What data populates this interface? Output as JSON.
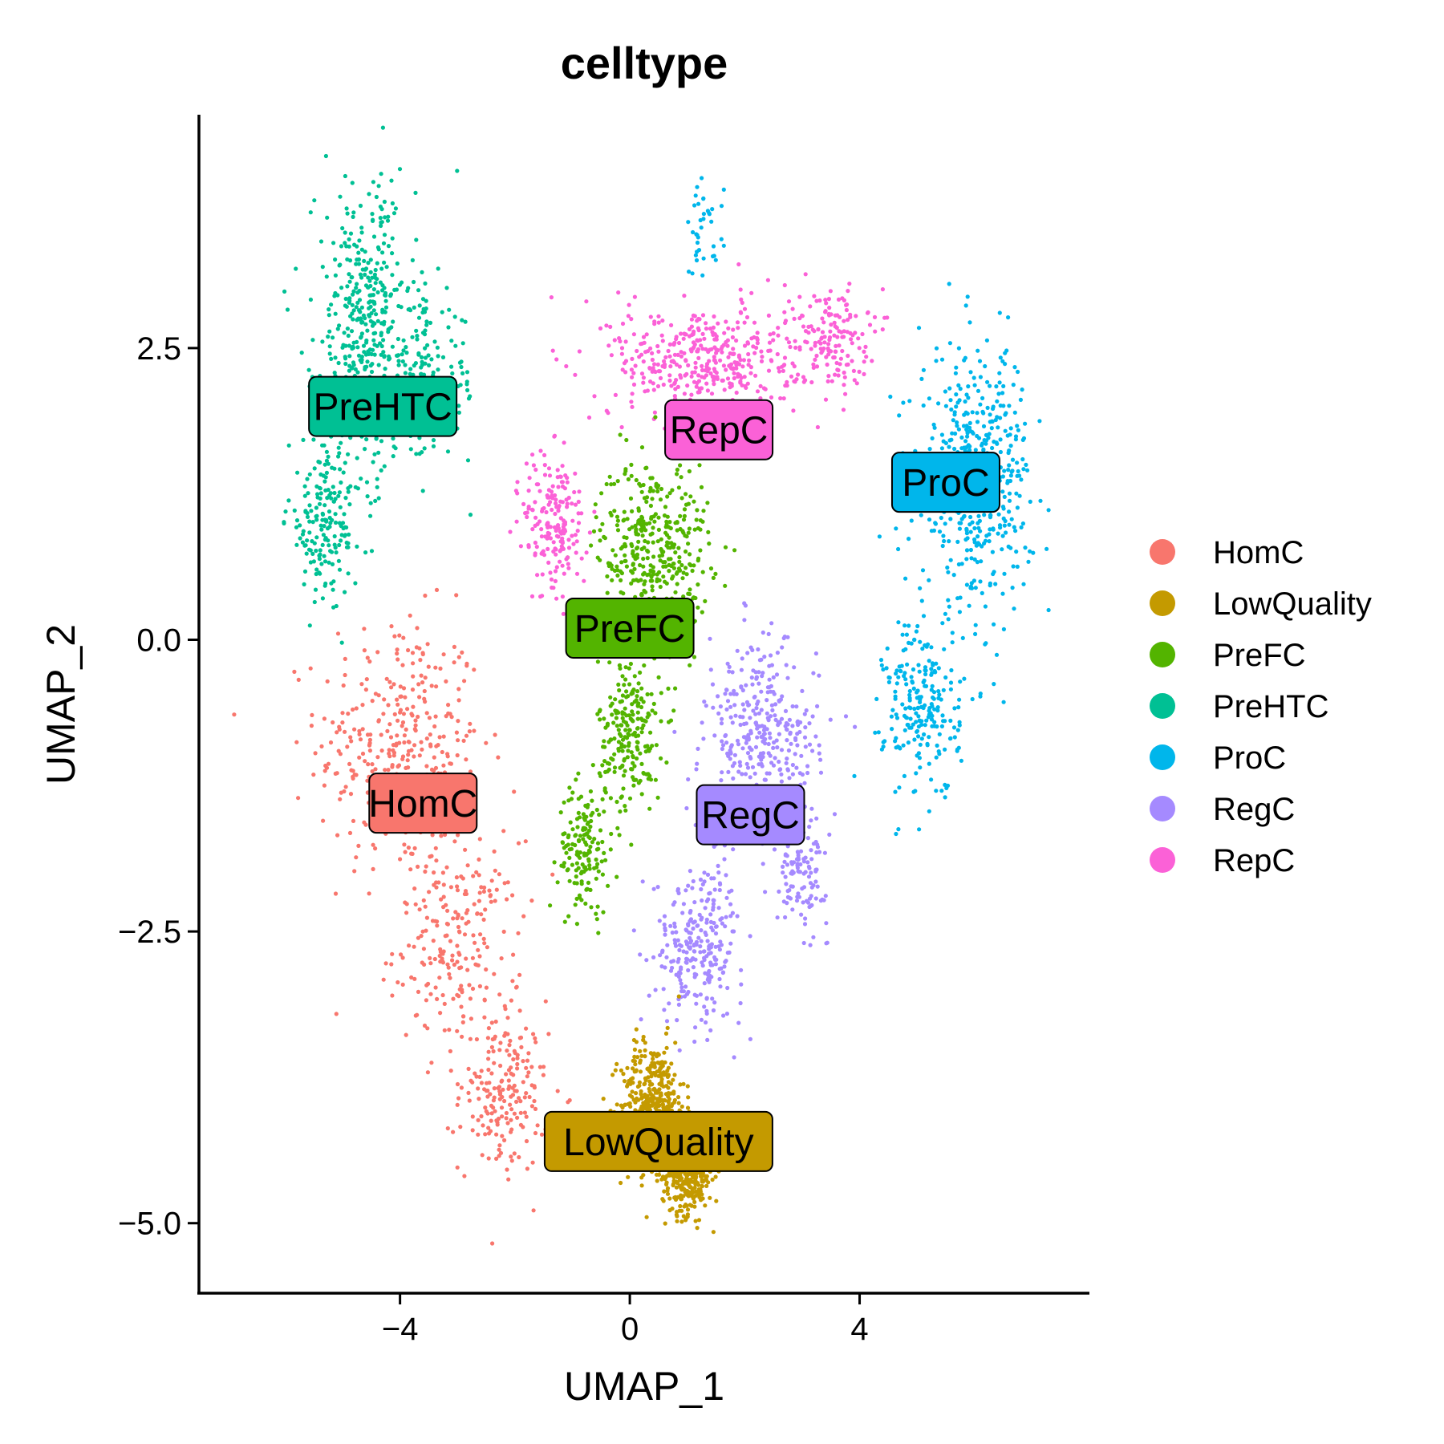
{
  "chart_data": {
    "type": "scatter",
    "title": "celltype",
    "xlabel": "UMAP_1",
    "ylabel": "UMAP_2",
    "xlim": [
      -7.5,
      8
    ],
    "ylim": [
      -5.6,
      4.5
    ],
    "x_ticks": [
      -4,
      0,
      4
    ],
    "x_tick_labels": [
      "−4",
      "0",
      "4"
    ],
    "y_ticks": [
      -5.0,
      -2.5,
      0.0,
      2.5
    ],
    "y_tick_labels": [
      "−5.0",
      "−2.5",
      "0.0",
      "2.5"
    ],
    "grid": false,
    "legend_position": "right",
    "series": [
      {
        "name": "HomC",
        "color": "#F8766D",
        "label": "HomC",
        "label_x": -3.6,
        "label_y": -1.4,
        "regions": [
          {
            "cx": -4.0,
            "cy": -0.9,
            "sx": 1.3,
            "sy": 1.0,
            "w": 0.45
          },
          {
            "cx": -3.0,
            "cy": -2.6,
            "sx": 1.0,
            "sy": 0.8,
            "w": 0.3
          },
          {
            "cx": -2.2,
            "cy": -3.9,
            "sx": 0.7,
            "sy": 0.6,
            "w": 0.25
          }
        ]
      },
      {
        "name": "LowQuality",
        "color": "#C49A00",
        "label": "LowQuality",
        "label_x": 0.5,
        "label_y": -4.3,
        "regions": [
          {
            "cx": 0.4,
            "cy": -4.0,
            "sx": 0.5,
            "sy": 0.5,
            "w": 0.6
          },
          {
            "cx": 1.0,
            "cy": -4.6,
            "sx": 0.4,
            "sy": 0.3,
            "w": 0.4
          }
        ]
      },
      {
        "name": "PreFC",
        "color": "#53B400",
        "label": "PreFC",
        "label_x": 0.0,
        "label_y": 0.1,
        "regions": [
          {
            "cx": 0.4,
            "cy": 0.8,
            "sx": 0.9,
            "sy": 0.7,
            "w": 0.5
          },
          {
            "cx": 0.0,
            "cy": -0.8,
            "sx": 0.5,
            "sy": 0.6,
            "w": 0.3
          },
          {
            "cx": -0.8,
            "cy": -1.8,
            "sx": 0.4,
            "sy": 0.5,
            "w": 0.2
          }
        ]
      },
      {
        "name": "PreHTC",
        "color": "#00C094",
        "label": "PreHTC",
        "label_x": -4.3,
        "label_y": 2.0,
        "regions": [
          {
            "cx": -4.6,
            "cy": 2.7,
            "sx": 0.8,
            "sy": 1.1,
            "w": 0.55
          },
          {
            "cx": -5.3,
            "cy": 1.0,
            "sx": 0.6,
            "sy": 0.6,
            "w": 0.25
          },
          {
            "cx": -3.5,
            "cy": 2.2,
            "sx": 0.8,
            "sy": 0.6,
            "w": 0.2
          }
        ]
      },
      {
        "name": "ProC",
        "color": "#00B6EB",
        "label": "ProC",
        "label_x": 5.5,
        "label_y": 1.35,
        "regions": [
          {
            "cx": 6.0,
            "cy": 1.4,
            "sx": 0.9,
            "sy": 1.0,
            "w": 0.65
          },
          {
            "cx": 5.1,
            "cy": -0.6,
            "sx": 0.6,
            "sy": 0.7,
            "w": 0.3
          },
          {
            "cx": 1.3,
            "cy": 3.5,
            "sx": 0.3,
            "sy": 0.4,
            "w": 0.05
          }
        ]
      },
      {
        "name": "RegC",
        "color": "#A58AFF",
        "label": "RegC",
        "label_x": 2.1,
        "label_y": -1.5,
        "regions": [
          {
            "cx": 2.3,
            "cy": -0.9,
            "sx": 0.9,
            "sy": 0.8,
            "w": 0.5
          },
          {
            "cx": 1.2,
            "cy": -2.6,
            "sx": 0.7,
            "sy": 0.6,
            "w": 0.35
          },
          {
            "cx": 3.0,
            "cy": -2.0,
            "sx": 0.4,
            "sy": 0.4,
            "w": 0.15
          }
        ]
      },
      {
        "name": "RepC",
        "color": "#FB61D7",
        "label": "RepC",
        "label_x": 1.55,
        "label_y": 1.8,
        "regions": [
          {
            "cx": 1.3,
            "cy": 2.4,
            "sx": 1.5,
            "sy": 0.45,
            "w": 0.55
          },
          {
            "cx": -1.3,
            "cy": 1.0,
            "sx": 0.5,
            "sy": 0.6,
            "w": 0.25
          },
          {
            "cx": 3.5,
            "cy": 2.6,
            "sx": 0.6,
            "sy": 0.4,
            "w": 0.2
          }
        ]
      }
    ]
  }
}
